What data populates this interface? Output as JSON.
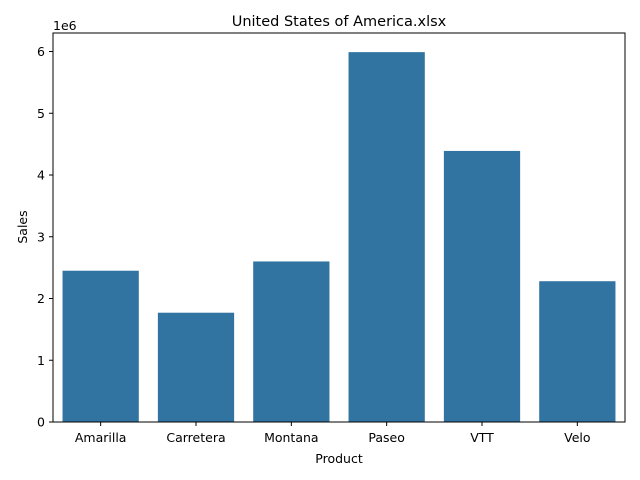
{
  "chart_data": {
    "type": "bar",
    "title": "United States of America.xlsx",
    "xlabel": "Product",
    "ylabel": "Sales",
    "offset_label": "1e6",
    "categories": [
      "Amarilla",
      "Carretera",
      "Montana",
      "Paseo",
      "VTT",
      "Velo"
    ],
    "values": [
      2450000,
      1770000,
      2600000,
      5990000,
      4390000,
      2280000
    ],
    "ylim": [
      0,
      6300000
    ],
    "yticks": [
      0,
      1000000,
      2000000,
      3000000,
      4000000,
      5000000,
      6000000
    ],
    "ytick_labels": [
      "0",
      "1",
      "2",
      "3",
      "4",
      "5",
      "6"
    ],
    "bar_color": "#3274a1",
    "grid": false,
    "legend": "none"
  }
}
